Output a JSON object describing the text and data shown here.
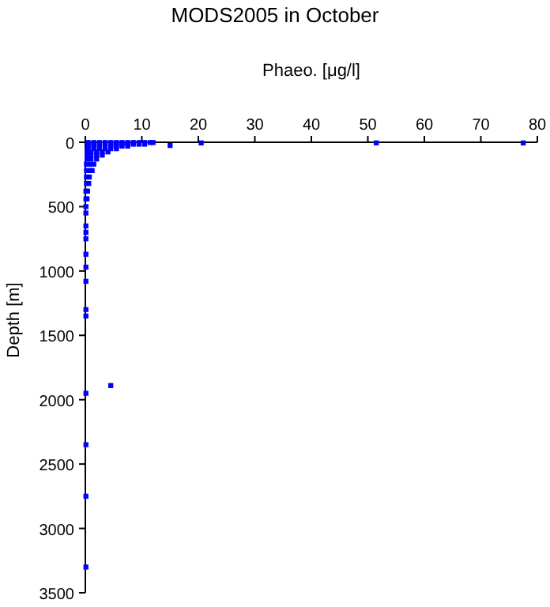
{
  "chart_data": {
    "type": "scatter",
    "title": "MODS2005 in October",
    "xlabel": "Phaeo. [μg/l]",
    "ylabel": "Depth [m]",
    "marker": "square",
    "grid": false,
    "xlim": [
      0,
      80
    ],
    "xticks": [
      0,
      10,
      20,
      30,
      40,
      50,
      60,
      70,
      80
    ],
    "ylim": [
      3500,
      0
    ],
    "yticks": [
      0,
      500,
      1000,
      1500,
      2000,
      2500,
      3000,
      3500
    ],
    "series": [
      {
        "color": "#0000ff",
        "x": [
          0.5,
          1.5,
          2.5,
          3.5,
          4.5,
          5.5,
          6.5,
          7.5,
          8.5,
          9.5,
          10.5,
          11.5,
          12,
          0.5,
          1.5,
          2.5,
          3.5,
          4.5,
          5.5,
          6.5,
          7.5,
          8.5,
          9.5,
          10.5,
          0.5,
          1.5,
          2.5,
          3.5,
          4.5,
          5.5,
          6.5,
          7.5,
          0.5,
          1.5,
          2.5,
          3.5,
          4.5,
          5.5,
          0.3,
          1,
          2,
          3,
          4,
          0.3,
          1,
          2,
          3,
          0.3,
          1,
          2,
          0.2,
          0.8,
          1.5,
          0.2,
          0.8,
          1.2,
          0.2,
          0.7,
          0.2,
          0.6,
          0.1,
          0.4,
          0.1,
          0.3,
          15,
          20.5,
          51.5,
          77.5,
          4.5,
          0.1,
          0.1,
          0.1,
          0.1,
          0.1,
          0.1,
          0.1,
          0.1,
          0.1,
          0.1,
          0.1,
          0.1,
          0.1,
          0.1
        ],
        "values": [
          2,
          2,
          2,
          2,
          2,
          2,
          2,
          2,
          2,
          2,
          2,
          2,
          2,
          15,
          15,
          15,
          15,
          15,
          15,
          15,
          15,
          15,
          15,
          15,
          30,
          30,
          30,
          30,
          30,
          30,
          30,
          30,
          50,
          50,
          50,
          50,
          50,
          50,
          75,
          75,
          75,
          75,
          75,
          100,
          100,
          100,
          100,
          130,
          130,
          130,
          170,
          170,
          170,
          220,
          220,
          220,
          270,
          270,
          320,
          320,
          380,
          380,
          440,
          440,
          25,
          5,
          5,
          5,
          1890,
          500,
          550,
          650,
          700,
          750,
          870,
          970,
          1080,
          1300,
          1350,
          1950,
          2350,
          2750,
          3300
        ]
      }
    ]
  }
}
